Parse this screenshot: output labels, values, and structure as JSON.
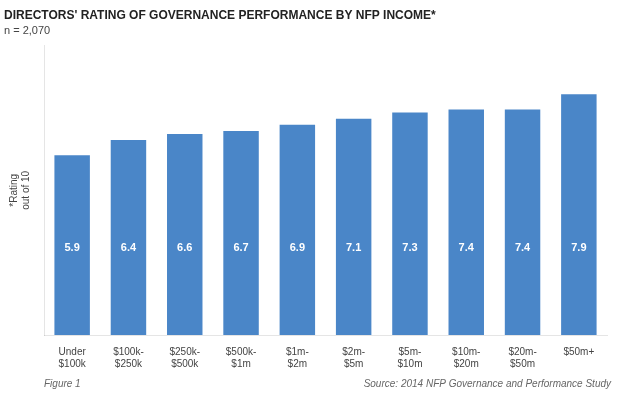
{
  "chart_data": {
    "type": "bar",
    "title": "DIRECTORS' RATING OF GOVERNANCE PERFORMANCE BY NFP INCOME*",
    "subtitle": "n = 2,070",
    "y_label": "*Rating\nout of 10",
    "categories": [
      "Under\n$100k",
      "$100k-\n$250k",
      "$250k-\n$500k",
      "$500k-\n$1m",
      "$1m-\n$2m",
      "$2m-\n$5m",
      "$5m-\n$10m",
      "$10m-\n$20m",
      "$20m-\n$50m",
      "$50m+"
    ],
    "values": [
      5.9,
      6.4,
      6.6,
      6.7,
      6.9,
      7.1,
      7.3,
      7.4,
      7.4,
      7.9
    ],
    "color": "#4a86c8",
    "ylim": [
      0,
      9.5
    ],
    "grid": false,
    "data_labels": true,
    "tick_labels": "x",
    "annotations": [
      "Figure 1",
      "Source: 2014 NFP Governance and Performance Study"
    ]
  }
}
